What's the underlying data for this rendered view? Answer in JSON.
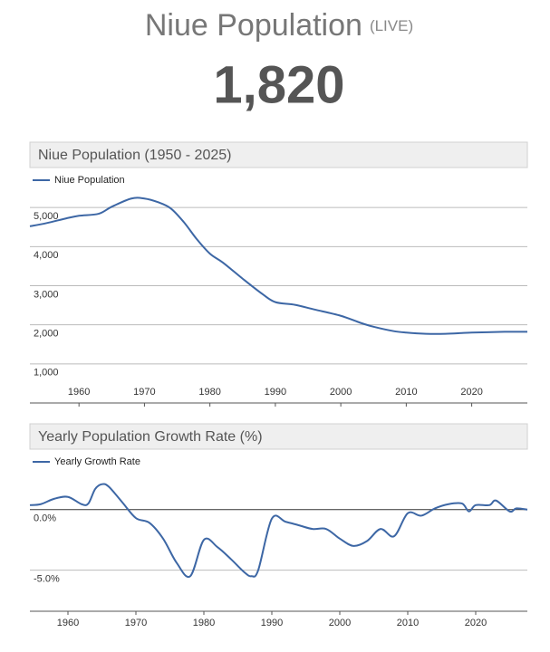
{
  "header": {
    "title": "Niue Population",
    "live": "(LIVE)",
    "counter": "1,820"
  },
  "chart_data": [
    {
      "type": "line",
      "title": "Niue Population (1950 - 2025)",
      "x": [
        1952.5,
        1955,
        1958,
        1960,
        1963,
        1965,
        1968,
        1970,
        1972,
        1974,
        1976,
        1978,
        1980,
        1982,
        1985,
        1988,
        1990,
        1993,
        1996,
        2000,
        2003,
        2005,
        2008,
        2010,
        2013,
        2016,
        2020,
        2025,
        2028.5
      ],
      "series": [
        {
          "name": "Niue Population",
          "color": "#3d67a5",
          "values": [
            4520,
            4600,
            4720,
            4790,
            4840,
            5020,
            5230,
            5230,
            5140,
            4980,
            4630,
            4190,
            3820,
            3590,
            3180,
            2790,
            2580,
            2510,
            2390,
            2230,
            2050,
            1950,
            1840,
            1800,
            1770,
            1770,
            1800,
            1820,
            1820
          ]
        }
      ],
      "xlim": [
        1952.5,
        2028.5
      ],
      "xticks": [
        1960,
        1970,
        1980,
        1990,
        2000,
        2010,
        2020
      ],
      "ylim": [
        0,
        6000
      ],
      "yticks": [
        {
          "value": 1000,
          "label": "1,000"
        },
        {
          "value": 2000,
          "label": "2,000"
        },
        {
          "value": 3000,
          "label": "3,000"
        },
        {
          "value": 4000,
          "label": "4,000"
        },
        {
          "value": 5000,
          "label": "5,000"
        }
      ],
      "grid": true,
      "legend": "top-left"
    },
    {
      "type": "line",
      "title": "Yearly Population Growth Rate (%)",
      "x": [
        1954.4,
        1956,
        1958,
        1960,
        1962,
        1963,
        1964,
        1965,
        1966,
        1968,
        1970,
        1972,
        1974,
        1976,
        1978,
        1980,
        1982,
        1984,
        1986,
        1987,
        1988,
        1990,
        1992,
        1994,
        1996,
        1998,
        2000,
        2002,
        2004,
        2006,
        2008,
        2010,
        2012,
        2014,
        2016,
        2018,
        2019,
        2020,
        2022,
        2023,
        2025,
        2026,
        2027.6
      ],
      "series": [
        {
          "name": "Yearly Growth Rate",
          "color": "#3d67a5",
          "values": [
            0.37,
            0.45,
            0.9,
            1.05,
            0.45,
            0.5,
            1.7,
            2.1,
            1.9,
            0.6,
            -0.7,
            -1.1,
            -2.4,
            -4.4,
            -5.5,
            -2.5,
            -3.1,
            -4.1,
            -5.2,
            -5.5,
            -5.0,
            -0.75,
            -1.0,
            -1.3,
            -1.6,
            -1.6,
            -2.4,
            -3.0,
            -2.6,
            -1.6,
            -2.2,
            -0.3,
            -0.5,
            0.1,
            0.45,
            0.5,
            -0.15,
            0.37,
            0.37,
            0.75,
            -0.15,
            0.1,
            0
          ]
        }
      ],
      "xlim": [
        1954.4,
        2027.6
      ],
      "xticks": [
        1960,
        1970,
        1980,
        1990,
        2000,
        2010,
        2020
      ],
      "ylim": [
        -8.4,
        3.2
      ],
      "yticks": [
        {
          "value": -5,
          "label": "-5.0%"
        },
        {
          "value": 0,
          "label": "0.0%"
        }
      ],
      "grid": true,
      "legend": "top-left"
    }
  ]
}
